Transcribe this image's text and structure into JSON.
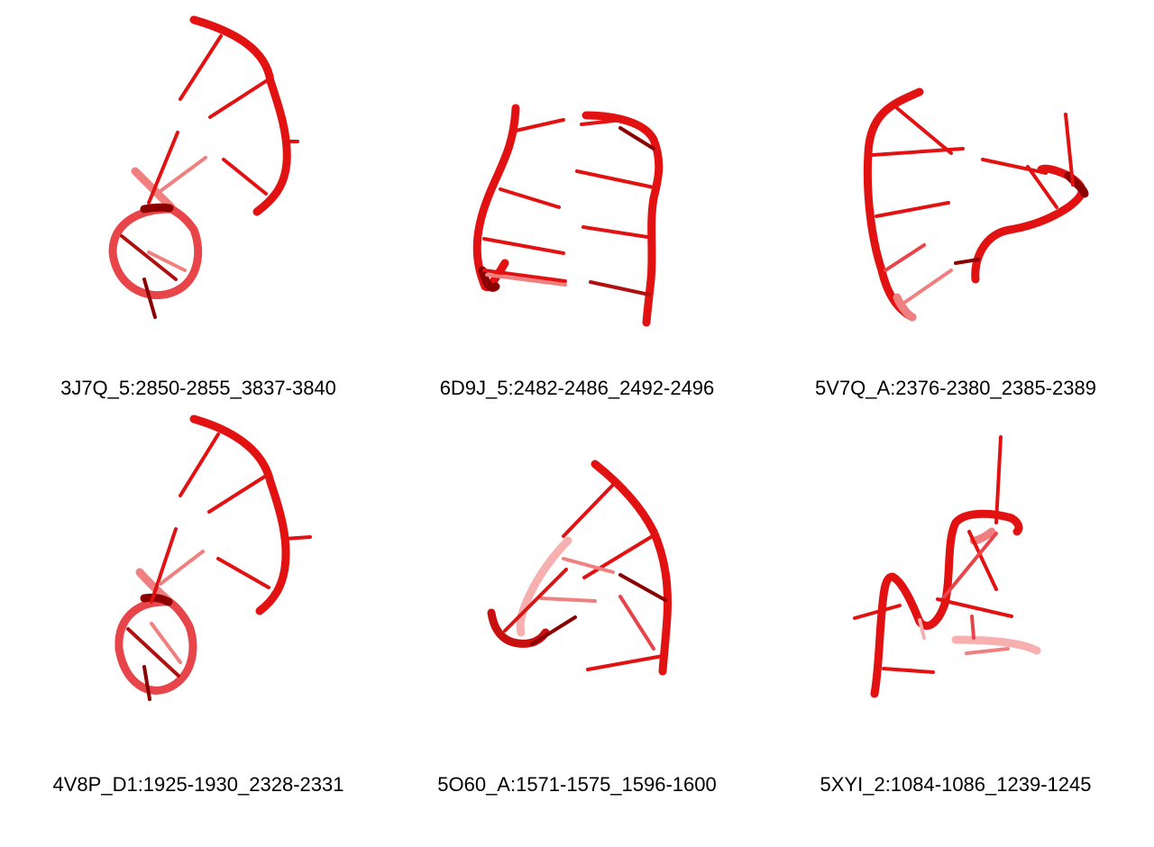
{
  "style": {
    "backbone_color": "#e31212",
    "dark_shade": "#8b0000",
    "faded_shade": "#f08080",
    "background": "#ffffff"
  },
  "structures": [
    {
      "label": "3J7Q_5:2850-2855_3837-3840"
    },
    {
      "label": "6D9J_5:2482-2486_2492-2496"
    },
    {
      "label": "5V7Q_A:2376-2380_2385-2389"
    },
    {
      "label": "4V8P_D1:1925-1930_2328-2331"
    },
    {
      "label": "5O60_A:1571-1575_1596-1600"
    },
    {
      "label": "5XYI_2:1084-1086_1239-1245"
    }
  ]
}
